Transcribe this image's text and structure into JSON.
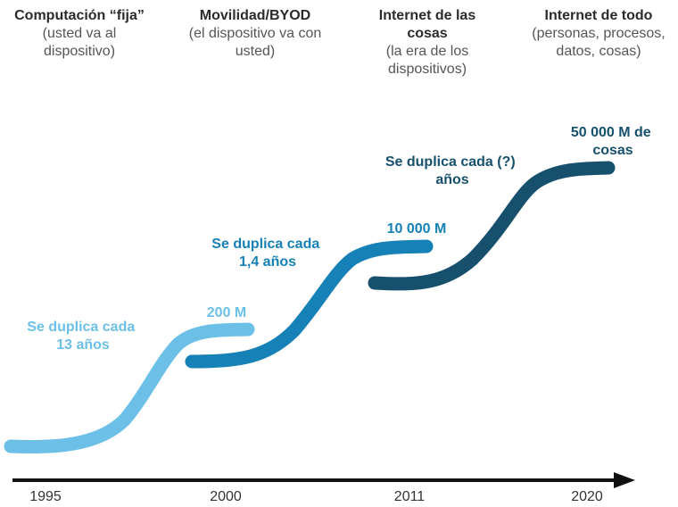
{
  "colors": {
    "phase_1": "#6cc0e8",
    "phase_2": "#1681b6",
    "phase_3": "#17506d",
    "axis": "#111111"
  },
  "eras": [
    {
      "title": "Computación “fija”",
      "subtitle": "(usted va al\ndispositivo)"
    },
    {
      "title": "Movilidad/BYOD",
      "subtitle": "(el dispositivo va con\nusted)"
    },
    {
      "title": "Internet de las\ncosas",
      "subtitle": "(la era de los\ndispositivos)"
    },
    {
      "title": "Internet de todo",
      "subtitle": "(personas, procesos,\ndatos, cosas)"
    }
  ],
  "phases": [
    {
      "rate_lines": [
        "Se duplica cada",
        "13 años"
      ],
      "end_label_lines": [
        "200 M"
      ]
    },
    {
      "rate_lines": [
        "Se duplica cada",
        "1,4 años"
      ],
      "end_label_lines": [
        "10 000 M"
      ]
    },
    {
      "rate_lines": [
        "Se duplica cada (?)",
        "años"
      ],
      "end_label_lines": [
        "50 000 M de",
        "cosas"
      ]
    }
  ],
  "timeline": {
    "years": [
      "1995",
      "2000",
      "2011",
      "2020"
    ]
  }
}
